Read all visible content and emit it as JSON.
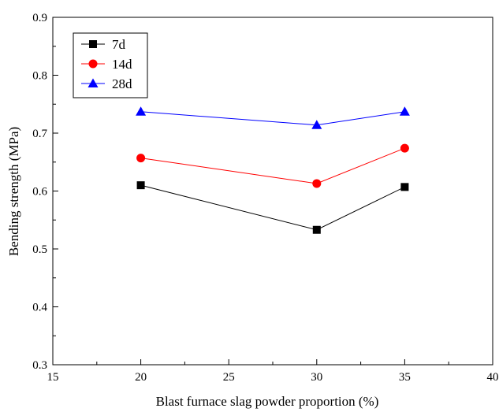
{
  "chart_data": {
    "type": "line",
    "title": "",
    "xlabel": "Blast furnace slag powder proportion (%)",
    "ylabel": "Bending  strength (MPa)",
    "xlim": [
      15,
      40
    ],
    "ylim": [
      0.3,
      0.9
    ],
    "x_ticks": [
      15,
      20,
      25,
      30,
      35,
      40
    ],
    "x_tick_labels": [
      "15",
      "20",
      "25",
      "30",
      "35",
      "40"
    ],
    "y_ticks": [
      0.3,
      0.4,
      0.5,
      0.6,
      0.7,
      0.8,
      0.9
    ],
    "y_tick_labels": [
      "0.3",
      "0.4",
      "0.5",
      "0.6",
      "0.7",
      "0.8",
      "0.9"
    ],
    "grid": false,
    "legend_position": "top-left",
    "x": [
      20,
      30,
      35
    ],
    "series": [
      {
        "name": "7d",
        "values": [
          0.61,
          0.533,
          0.607
        ],
        "marker": "square",
        "color": "#000000"
      },
      {
        "name": "14d",
        "values": [
          0.657,
          0.613,
          0.674
        ],
        "marker": "circle",
        "color": "#ff0000"
      },
      {
        "name": "28d",
        "values": [
          0.737,
          0.714,
          0.737
        ],
        "marker": "triangle",
        "color": "#0000ff"
      }
    ]
  }
}
